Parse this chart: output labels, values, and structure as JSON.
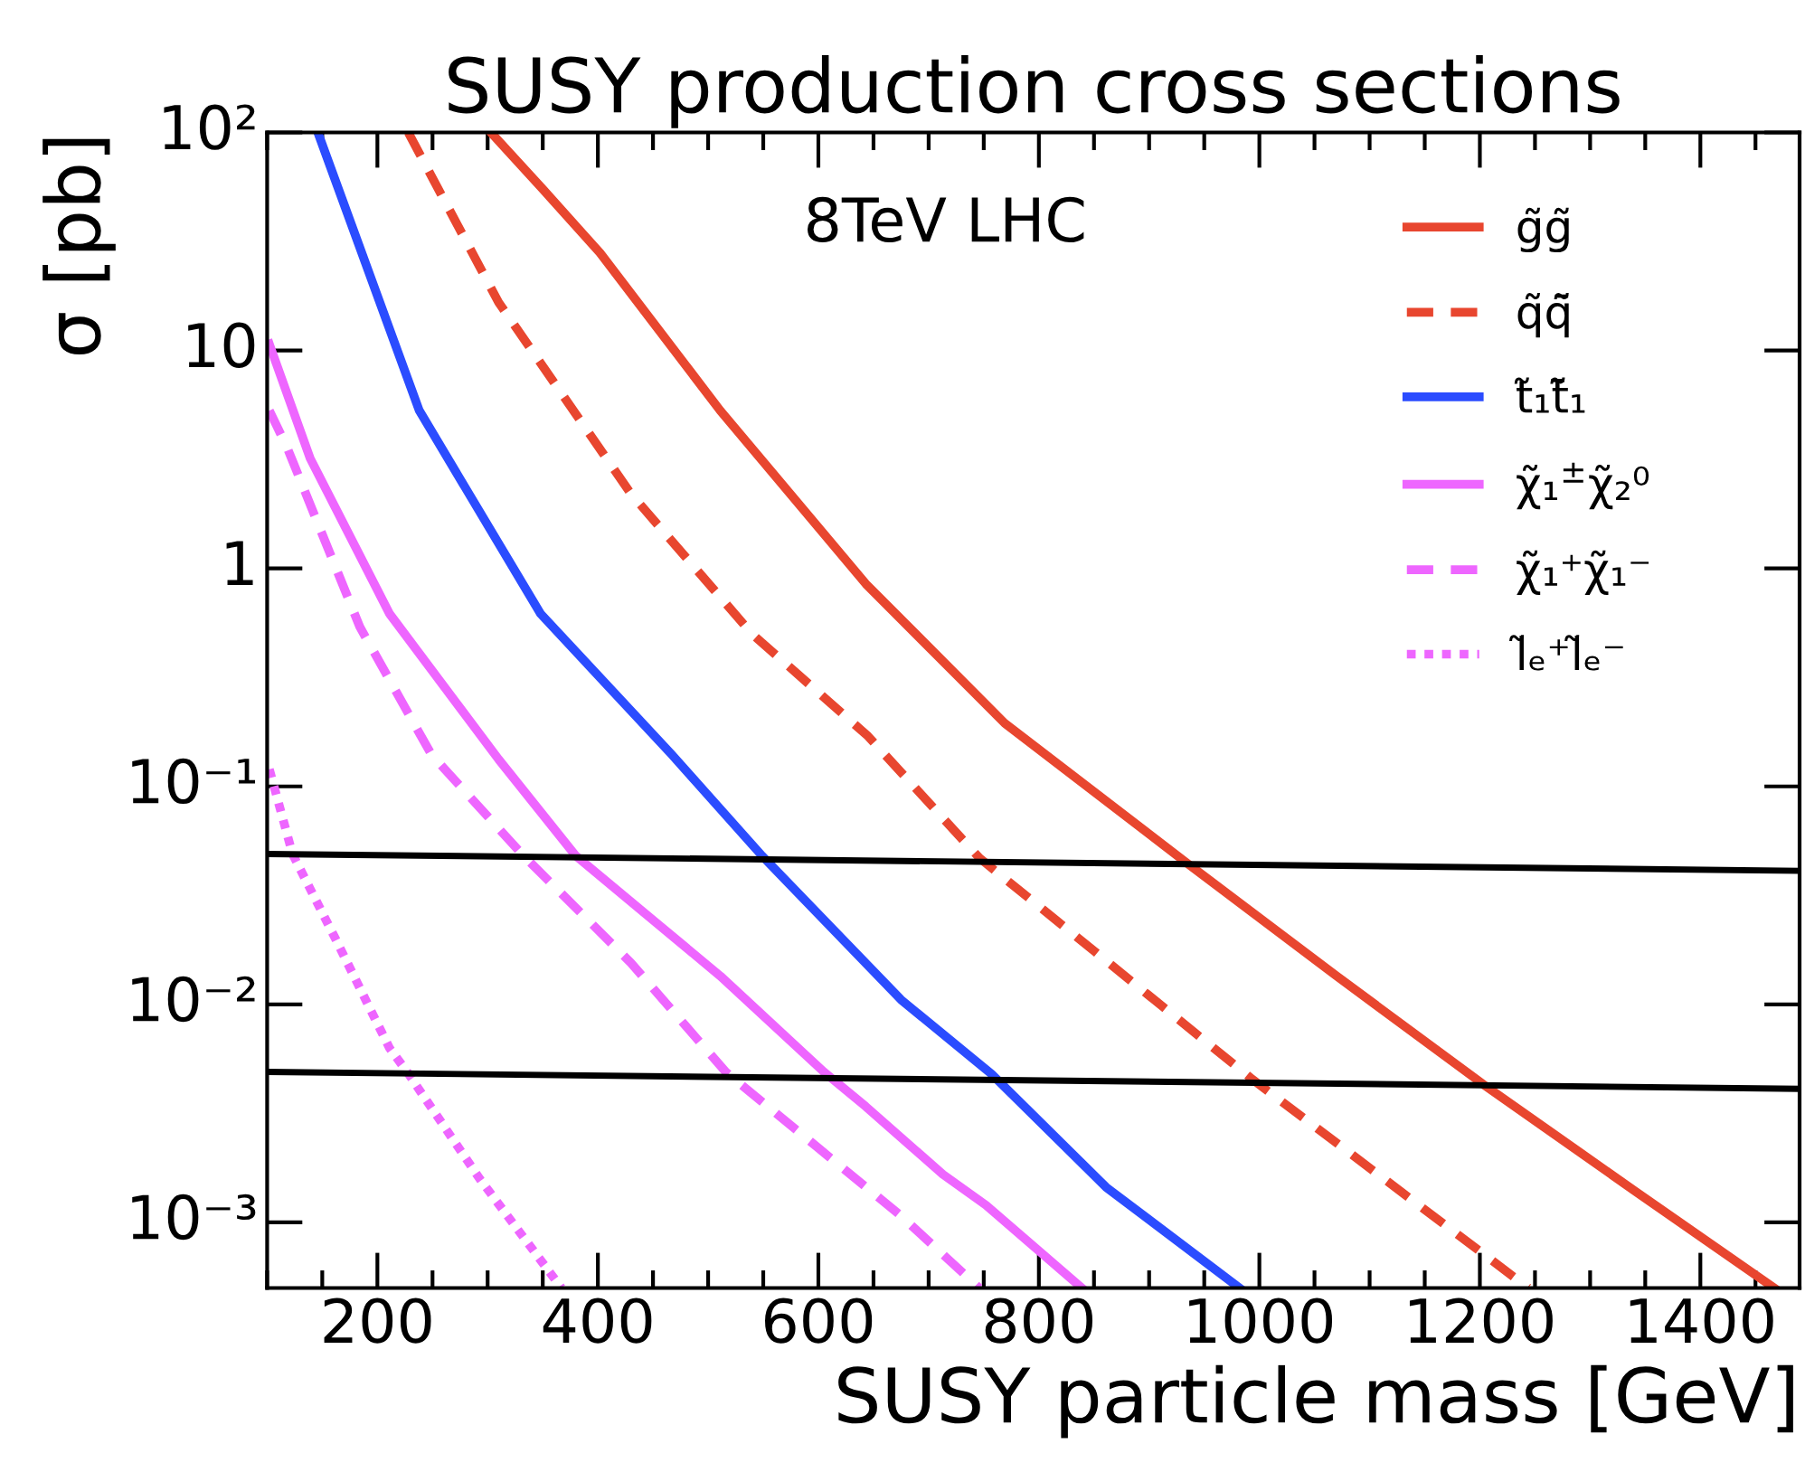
{
  "chart_data": {
    "type": "line",
    "title": "SUSY production cross sections",
    "xlabel": "SUSY particle mass [GeV]",
    "ylabel": "σ [pb]",
    "annotations": [
      "8TeV LHC"
    ],
    "log": "y",
    "xlim": [
      100,
      1490
    ],
    "xticks": [
      200,
      400,
      600,
      800,
      1000,
      1200,
      1400
    ],
    "ylim": [
      0.0005,
      100
    ],
    "yticks": [
      {
        "value": 0.001,
        "label": "10⁻³"
      },
      {
        "value": 0.01,
        "label": "10⁻²"
      },
      {
        "value": 0.1,
        "label": "10⁻¹"
      },
      1,
      10,
      {
        "value": 100,
        "label": "10²"
      }
    ],
    "grid": false,
    "legend": "top right",
    "series": [
      {
        "name": "g̃g̃",
        "color": "#e8462f",
        "line_style": "solid",
        "x": [
          303,
          350,
          402,
          511,
          643,
          769,
          933,
          1070,
          1203,
          1340,
          1467
        ],
        "values": [
          100,
          55,
          28,
          5.3,
          0.85,
          0.195,
          0.045,
          0.0135,
          0.0043,
          0.0014,
          0.0005
        ]
      },
      {
        "name": "q̃q̃̄",
        "color": "#e8462f",
        "line_style": "dashed",
        "x": [
          228,
          310,
          430,
          540,
          645,
          746,
          992,
          1244
        ],
        "values": [
          100,
          16.6,
          2.2,
          0.5,
          0.17,
          0.047,
          0.0046,
          0.0005
        ]
      },
      {
        "name": "t̃₁t̃̄₁",
        "color": "#2b4cff",
        "line_style": "solid",
        "x": [
          146,
          238,
          348,
          467,
          549,
          675,
          757,
          861,
          982
        ],
        "values": [
          100,
          5.3,
          0.62,
          0.14,
          0.048,
          0.0105,
          0.0048,
          0.00145,
          0.0005
        ]
      },
      {
        "name": "χ̃₁$^{±}$χ̃₂⁰",
        "color": "#ee66ff",
        "line_style": "solid",
        "x": [
          102,
          139,
          211,
          310,
          380,
          511,
          605,
          643,
          713,
          752,
          839
        ],
        "values": [
          10.7,
          3.2,
          0.62,
          0.133,
          0.048,
          0.0135,
          0.0049,
          0.0034,
          0.00166,
          0.0012,
          0.0005
        ]
      },
      {
        "name": "χ̃₁⁺χ̃₁⁻",
        "color": "#ee66ff",
        "line_style": "dashed",
        "x": [
          102,
          118,
          184,
          249,
          331,
          430,
          516,
          675,
          746
        ],
        "values": [
          5.3,
          3.6,
          0.54,
          0.14,
          0.049,
          0.0155,
          0.0049,
          0.00107,
          0.0005
        ]
      },
      {
        "name": "l̃ₑ⁺l̃ₑ⁻",
        "color": "#ee66ff",
        "line_style": "dotted",
        "x": [
          102,
          123,
          162,
          211,
          227,
          293,
          367
        ],
        "values": [
          0.12,
          0.049,
          0.02,
          0.0063,
          0.0049,
          0.00158,
          0.0005
        ]
      },
      {
        "color": "#000000",
        "line_style": "solid",
        "x": [
          100,
          1490
        ],
        "values": [
          0.049,
          0.041
        ]
      },
      {
        "color": "#000000",
        "line_style": "solid",
        "x": [
          100,
          1490
        ],
        "values": [
          0.0049,
          0.0041
        ]
      }
    ]
  }
}
